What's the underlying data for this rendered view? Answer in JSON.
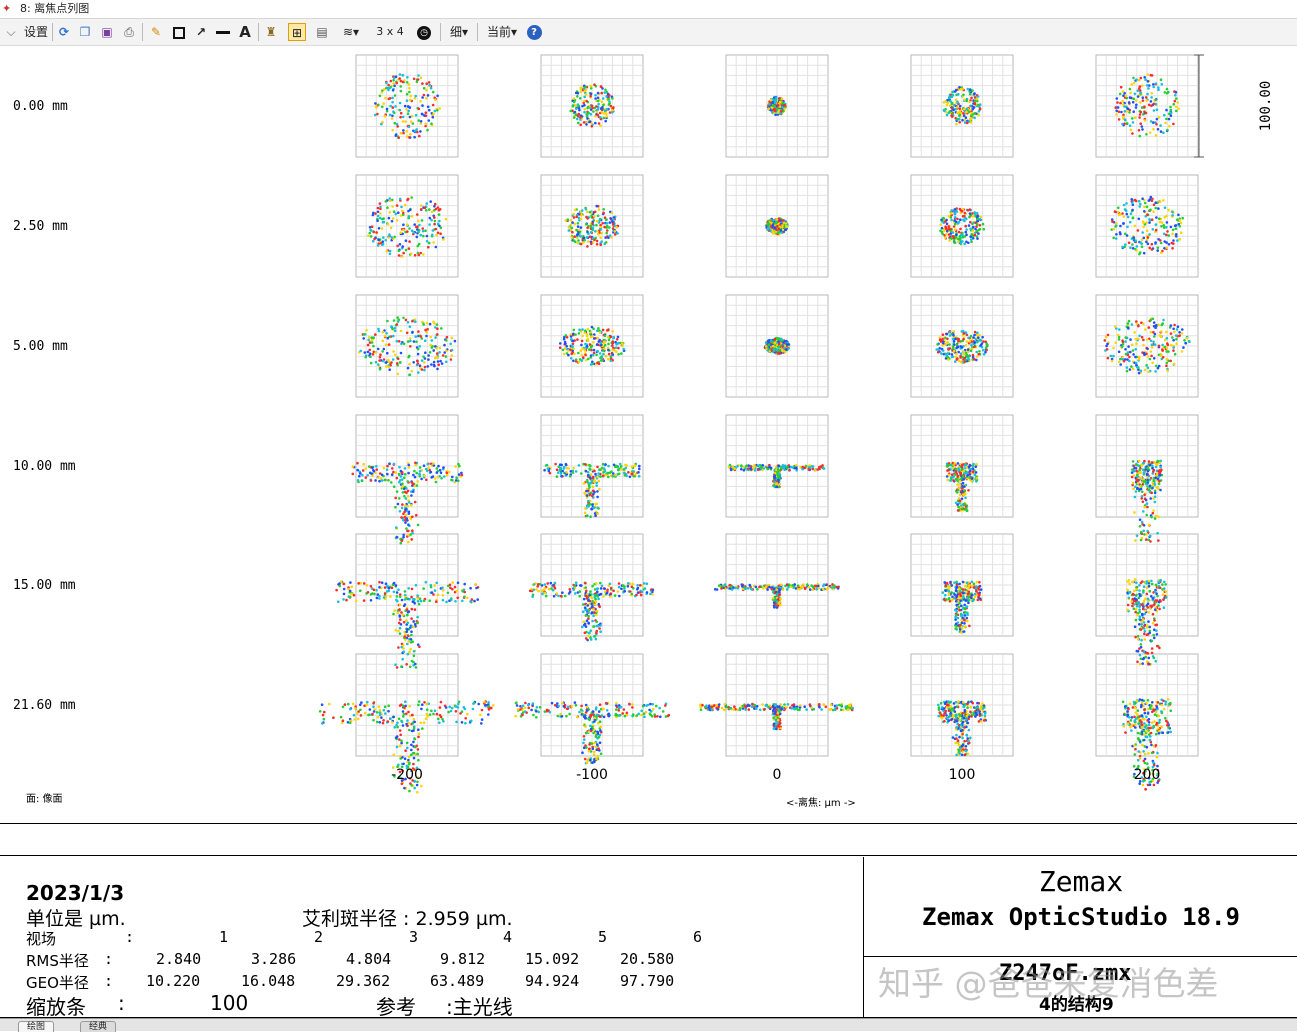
{
  "window": {
    "title": "8: 离焦点列图"
  },
  "toolbar": {
    "settings_label": "设置",
    "layout_label": "3 x 4",
    "line_label": "细",
    "current_label": "当前",
    "icons": [
      "chevron-down-icon",
      "refresh-icon",
      "copy-icon",
      "save-icon",
      "print-icon",
      "pencil-icon",
      "rectangle-icon",
      "arrow-icon",
      "line-icon",
      "text-icon",
      "lock-icon",
      "snap-icon",
      "window-icon",
      "layers-icon",
      "clock-icon",
      "help-icon"
    ]
  },
  "plot": {
    "field_labels": [
      "0.00 mm",
      "2.50 mm",
      "5.00 mm",
      "10.00 mm",
      "15.00 mm",
      "21.60 mm"
    ],
    "focus_values": [
      "-200",
      "-100",
      "0",
      "100",
      "200"
    ],
    "scale_label": "100.00",
    "surface_label": "面: 像面",
    "axis_label": "<-离焦: µm ->"
  },
  "info": {
    "date": "2023/1/3",
    "units": "单位是 µm.",
    "airy": "艾利斑半径  : 2.959 µm.",
    "field_label": "视场",
    "field_colon": ":",
    "field_nums": [
      "1",
      "2",
      "3",
      "4",
      "5",
      "6"
    ],
    "rms_label": "RMS半径",
    "rms_colon": ":",
    "rms": [
      "2.840",
      "3.286",
      "4.804",
      "9.812",
      "15.092",
      "20.580"
    ],
    "geo_label": "GEO半径",
    "geo_colon": ":",
    "geo": [
      "10.220",
      "16.048",
      "29.362",
      "63.489",
      "94.924",
      "97.790"
    ],
    "scale_label": "缩放条",
    "scale_colon": ":",
    "scale_value": "100",
    "ref_label": "参考",
    "ref_value": ":主光线"
  },
  "brand": {
    "name": "Zemax",
    "product": "Zemax OpticStudio 18.9",
    "file": "Z247oF.zmx",
    "config": "4的结构9",
    "watermark": "知乎 @爸爸来复消色差"
  },
  "statusbar": {
    "tabs": [
      "绘图",
      "经典"
    ]
  },
  "colors": [
    "#1f4fff",
    "#17c0e0",
    "#20d030",
    "#ffd400",
    "#ff2a2a"
  ]
}
